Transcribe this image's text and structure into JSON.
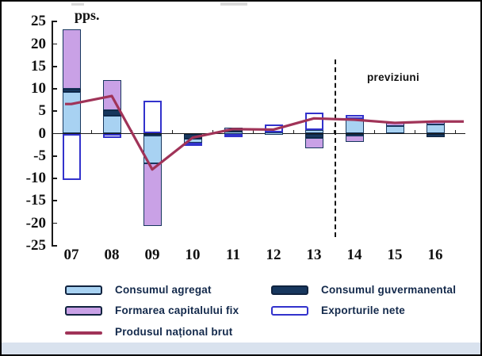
{
  "frame": {
    "background": "#ffffff",
    "border_color": "#000000",
    "bottom_strip_color": "#d9e2ee"
  },
  "chart_data": {
    "type": "bar",
    "subtype": "stacked-contribution-bars-with-line-overlay",
    "unit_label": "pps.",
    "categories": [
      "07",
      "08",
      "09",
      "10",
      "11",
      "12",
      "13",
      "14",
      "15",
      "16"
    ],
    "ylim": [
      -25,
      25
    ],
    "ytick_step": 5,
    "grid": false,
    "axis_color": "#1a1a1a",
    "divider_color": "#141414",
    "forecast": {
      "label": "previziuni",
      "divider_between": [
        "13",
        "14"
      ]
    },
    "series": [
      {
        "key": "cons",
        "name": "Consumul agregat",
        "type": "bar",
        "fill": "#a8d2f2",
        "border": "#17375e",
        "values": [
          9.3,
          3.9,
          -6.3,
          -0.9,
          0.4,
          0.3,
          0.8,
          3.2,
          1.7,
          2.1
        ]
      },
      {
        "key": "gov",
        "name": "Consumul guvermanental",
        "type": "bar",
        "fill": "#17375e",
        "border": "#0e2440",
        "values": [
          0.7,
          1.4,
          -0.4,
          -1.1,
          0.5,
          0,
          -0.9,
          -0.5,
          0,
          -0.8
        ]
      },
      {
        "key": "fixed",
        "name": "Formarea capitalului fix",
        "type": "bar",
        "fill": "#c9a1e6",
        "border": "#17375e",
        "values": [
          13.3,
          6.7,
          -13.9,
          0,
          0.4,
          0,
          -2.4,
          -1.4,
          0.7,
          0.7
        ]
      },
      {
        "key": "netx",
        "name": "Exporturile nete",
        "type": "bar",
        "fill": "#ffffff",
        "border": "#3232cc",
        "values": [
          -10.4,
          -1.0,
          7.4,
          -0.7,
          -0.5,
          1.7,
          3.9,
          0.9,
          0,
          0
        ]
      },
      {
        "key": "gnp",
        "name": "Produsul național brut",
        "type": "line",
        "color": "#a03358",
        "values": [
          6.6,
          8.4,
          -8.0,
          -0.9,
          1.0,
          0.9,
          3.4,
          3.1,
          2.4,
          2.7
        ]
      }
    ],
    "stack_order_positive": [
      "cons",
      "gov",
      "fixed",
      "netx"
    ],
    "stack_order_negative": [
      "gov",
      "cons",
      "fixed",
      "netx"
    ],
    "legend": {
      "left": [
        "cons",
        "fixed",
        "gnp"
      ],
      "right": [
        "gov",
        "netx"
      ]
    }
  }
}
